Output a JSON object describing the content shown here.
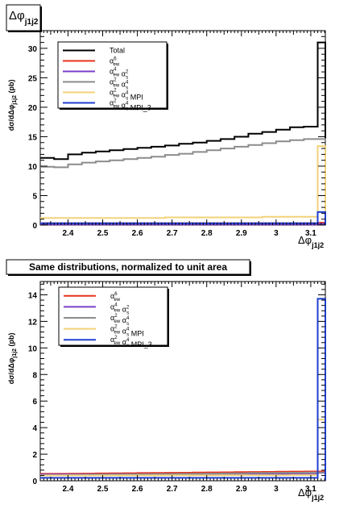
{
  "colors": {
    "total": "#000000",
    "ew6": "#e8321e",
    "ew4s2": "#7a3fc8",
    "ew2s4": "#8c8c8c",
    "mpi": "#f2d27a",
    "mpi3": "#1f3fd0"
  },
  "chart_data": [
    {
      "type": "line",
      "step": true,
      "title": "Δφ",
      "title_sub": "j1j2",
      "xlabel": "Δφ",
      "xlabel_sub": "j1j2",
      "ylabel": "dσ/dΔφ",
      "ylabel_sub": "j1j2",
      "ylabel_unit": "(pb)",
      "xlim": [
        2.32,
        3.142
      ],
      "ylim": [
        0,
        33
      ],
      "xticks": [
        "2.4",
        "2.5",
        "2.6",
        "2.7",
        "2.8",
        "2.9",
        "3",
        "3.1"
      ],
      "yticks": [
        "0",
        "5",
        "10",
        "15",
        "20",
        "25",
        "30"
      ],
      "legend_position": "top-left",
      "legend": [
        {
          "main": "Total",
          "color_key": "total"
        },
        {
          "main": "α",
          "sup": "6",
          "sub": "ew",
          "color_key": "ew6"
        },
        {
          "main": "α",
          "sup": "4",
          "sub": "ew",
          "main2": " α",
          "sup2": "2",
          "sub2": "s",
          "color_key": "ew4s2"
        },
        {
          "main": "α",
          "sup": "2",
          "sub": "ew",
          "main2": " α",
          "sup2": "4",
          "sub2": "s",
          "color_key": "ew2s4"
        },
        {
          "main": "α",
          "sup": "2",
          "sub": "ew",
          "main2": " α",
          "sup2": "4",
          "sub2": "s",
          "suffix": " MPI",
          "color_key": "mpi"
        },
        {
          "main": "α",
          "sup": "2",
          "sub": "ew",
          "main2": " α",
          "sup2": "4",
          "sub2": "s",
          "suffix": " MPI_3",
          "color_key": "mpi3"
        }
      ],
      "bin_edges": [
        2.32,
        2.36,
        2.4,
        2.44,
        2.48,
        2.52,
        2.56,
        2.6,
        2.64,
        2.68,
        2.72,
        2.76,
        2.8,
        2.84,
        2.88,
        2.92,
        2.96,
        3.0,
        3.04,
        3.08,
        3.12,
        3.142
      ],
      "series": [
        {
          "name": "Total",
          "color_key": "total",
          "values": [
            11.4,
            11.2,
            12.0,
            12.3,
            12.5,
            12.7,
            12.9,
            13.1,
            13.3,
            13.5,
            13.8,
            14.0,
            14.3,
            14.6,
            15.0,
            15.5,
            15.8,
            16.2,
            16.6,
            16.7,
            31.0
          ]
        },
        {
          "name": "α_ew^6",
          "color_key": "ew6",
          "values": [
            0.3,
            0.3,
            0.3,
            0.3,
            0.3,
            0.3,
            0.3,
            0.3,
            0.3,
            0.3,
            0.3,
            0.3,
            0.3,
            0.3,
            0.3,
            0.3,
            0.3,
            0.3,
            0.3,
            0.3,
            0.4
          ]
        },
        {
          "name": "α_ew^4 α_s^2",
          "color_key": "ew4s2",
          "values": [
            0.1,
            0.1,
            0.1,
            0.1,
            0.1,
            0.1,
            0.1,
            0.1,
            0.1,
            0.1,
            0.1,
            0.1,
            0.1,
            0.1,
            0.1,
            0.1,
            0.1,
            0.1,
            0.1,
            0.1,
            0.2
          ]
        },
        {
          "name": "α_ew^2 α_s^4",
          "color_key": "ew2s4",
          "values": [
            9.9,
            9.8,
            10.3,
            10.6,
            10.8,
            11.0,
            11.2,
            11.4,
            11.6,
            11.9,
            12.1,
            12.4,
            12.7,
            13.0,
            13.3,
            13.6,
            13.9,
            14.2,
            14.4,
            14.6,
            14.6
          ]
        },
        {
          "name": "α_ew^2 α_s^4 MPI",
          "color_key": "mpi",
          "values": [
            1.2,
            1.2,
            1.2,
            1.2,
            1.2,
            1.2,
            1.2,
            1.2,
            1.2,
            1.3,
            1.3,
            1.3,
            1.3,
            1.3,
            1.3,
            1.3,
            1.4,
            1.4,
            1.4,
            1.4,
            13.4
          ]
        },
        {
          "name": "α_ew^2 α_s^4 MPI_3",
          "color_key": "mpi3",
          "values": [
            0.3,
            0.3,
            0.3,
            0.3,
            0.3,
            0.3,
            0.3,
            0.3,
            0.3,
            0.3,
            0.3,
            0.3,
            0.3,
            0.3,
            0.3,
            0.3,
            0.3,
            0.3,
            0.3,
            0.3,
            2.2
          ]
        }
      ]
    },
    {
      "type": "line",
      "step": true,
      "title": "Same distributions, normalized to unit area",
      "xlabel": "Δφ",
      "xlabel_sub": "j1j2",
      "ylabel": "dσ/dΔφ",
      "ylabel_sub": "j1j2",
      "ylabel_unit": "(pb)",
      "xlim": [
        2.32,
        3.142
      ],
      "ylim": [
        0,
        15
      ],
      "xticks": [
        "2.4",
        "2.5",
        "2.6",
        "2.7",
        "2.8",
        "2.9",
        "3",
        "3.1"
      ],
      "yticks": [
        "0",
        "2",
        "4",
        "6",
        "8",
        "10",
        "12",
        "14"
      ],
      "legend_position": "top-left",
      "legend": [
        {
          "main": "α",
          "sup": "6",
          "sub": "ew",
          "color_key": "ew6"
        },
        {
          "main": "α",
          "sup": "4",
          "sub": "ew",
          "main2": " α",
          "sup2": "2",
          "sub2": "s",
          "color_key": "ew4s2"
        },
        {
          "main": "α",
          "sup": "2",
          "sub": "ew",
          "main2": " α",
          "sup2": "4",
          "sub2": "s",
          "color_key": "ew2s4"
        },
        {
          "main": "α",
          "sup": "2",
          "sub": "ew",
          "main2": " α",
          "sup2": "4",
          "sub2": "s",
          "suffix": " MPI",
          "color_key": "mpi"
        },
        {
          "main": "α",
          "sup": "2",
          "sub": "ew",
          "main2": " α",
          "sup2": "4",
          "sub2": "s",
          "suffix": " MPI_3",
          "color_key": "mpi3"
        }
      ],
      "bin_edges": [
        2.32,
        2.36,
        2.4,
        2.44,
        2.48,
        2.52,
        2.56,
        2.6,
        2.64,
        2.68,
        2.72,
        2.76,
        2.8,
        2.84,
        2.88,
        2.92,
        2.96,
        3.0,
        3.04,
        3.08,
        3.12,
        3.142
      ],
      "series": [
        {
          "name": "α_ew^6",
          "color_key": "ew6",
          "values": [
            0.52,
            0.52,
            0.53,
            0.54,
            0.55,
            0.56,
            0.57,
            0.58,
            0.59,
            0.6,
            0.61,
            0.62,
            0.63,
            0.64,
            0.65,
            0.66,
            0.67,
            0.68,
            0.69,
            0.7,
            0.7
          ]
        },
        {
          "name": "α_ew^4 α_s^2",
          "color_key": "ew4s2",
          "values": [
            0.48,
            0.48,
            0.48,
            0.48,
            0.48,
            0.49,
            0.49,
            0.49,
            0.49,
            0.5,
            0.5,
            0.5,
            0.5,
            0.5,
            0.5,
            0.5,
            0.5,
            0.5,
            0.5,
            0.5,
            0.6
          ]
        },
        {
          "name": "α_ew^2 α_s^4",
          "color_key": "ew2s4",
          "values": [
            0.42,
            0.42,
            0.44,
            0.45,
            0.46,
            0.47,
            0.48,
            0.49,
            0.5,
            0.51,
            0.52,
            0.53,
            0.54,
            0.55,
            0.56,
            0.58,
            0.59,
            0.6,
            0.61,
            0.62,
            0.62
          ]
        },
        {
          "name": "α_ew^2 α_s^4 MPI",
          "color_key": "mpi",
          "values": [
            0.4,
            0.4,
            0.4,
            0.4,
            0.4,
            0.4,
            0.4,
            0.4,
            0.4,
            0.41,
            0.41,
            0.41,
            0.41,
            0.42,
            0.42,
            0.42,
            0.42,
            0.42,
            0.43,
            0.43,
            4.6
          ]
        },
        {
          "name": "α_ew^2 α_s^4 MPI_3",
          "color_key": "mpi3",
          "values": [
            0.22,
            0.22,
            0.22,
            0.22,
            0.22,
            0.22,
            0.22,
            0.22,
            0.22,
            0.22,
            0.22,
            0.22,
            0.22,
            0.22,
            0.22,
            0.22,
            0.22,
            0.22,
            0.22,
            0.22,
            13.7
          ]
        }
      ]
    }
  ]
}
